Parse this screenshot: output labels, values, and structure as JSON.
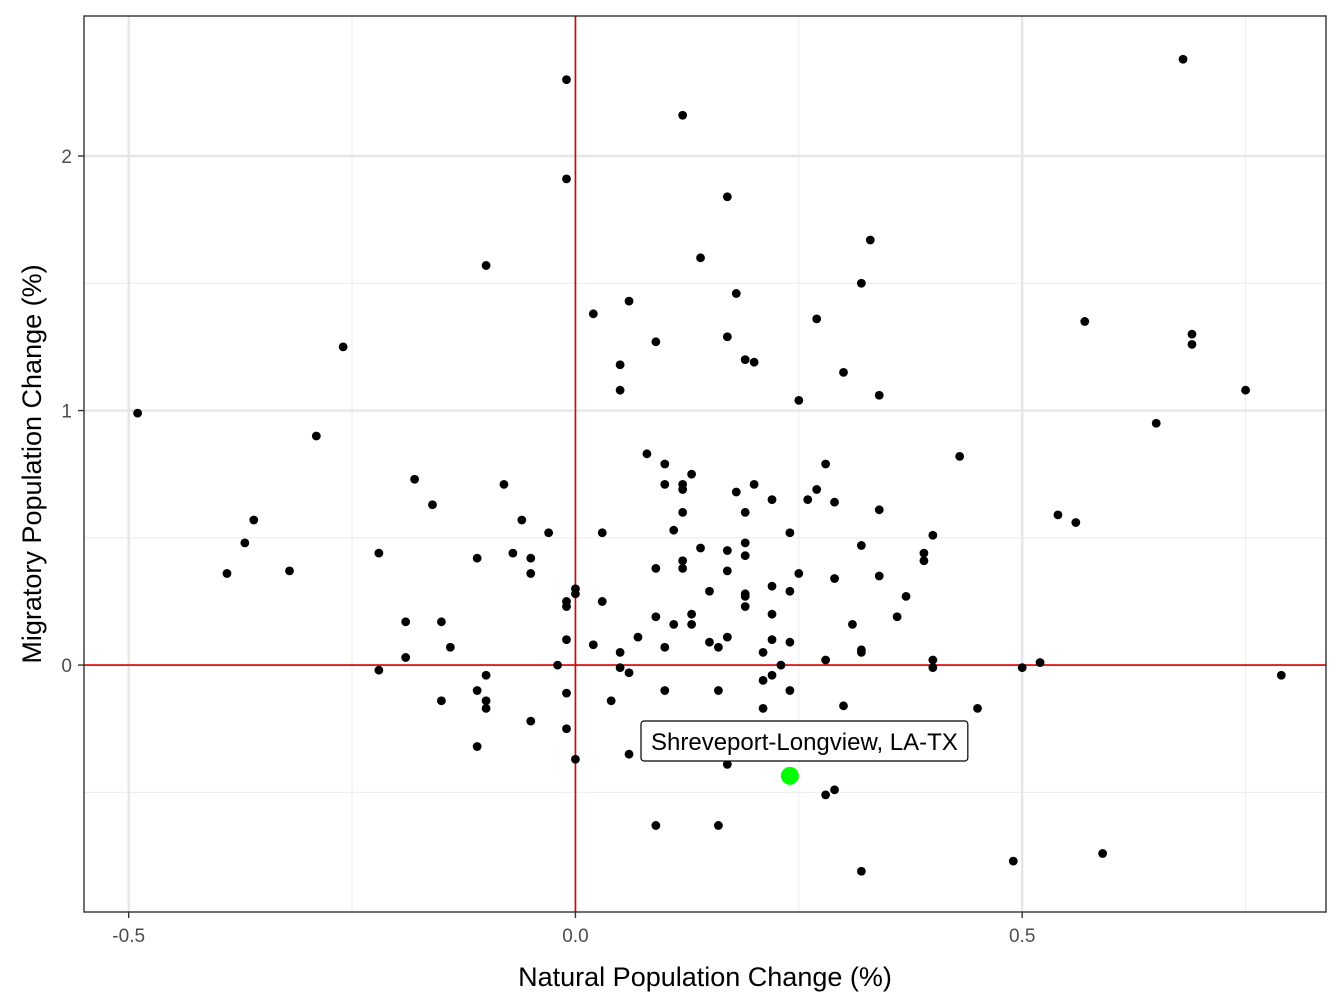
{
  "chart_data": {
    "type": "scatter",
    "title": "",
    "xlabel": "Natural Population Change (%)",
    "ylabel": "Migratory Population Change (%)",
    "xlim": [
      -0.55,
      0.84
    ],
    "ylim": [
      -0.97,
      2.55
    ],
    "x_ticks": [
      -0.5,
      0.0,
      0.5
    ],
    "x_tick_labels": [
      "-0.5",
      "0.0",
      "0.5"
    ],
    "y_ticks": [
      0,
      1,
      2
    ],
    "y_tick_labels": [
      "0",
      "1",
      "2"
    ],
    "x_minor": [
      -0.25,
      0.25,
      0.75
    ],
    "y_minor": [
      -0.5,
      0.5,
      1.5
    ],
    "grid": true,
    "legend": "none",
    "reference_lines": {
      "x": 0,
      "y": 0,
      "color": "#e00000"
    },
    "point_color": "#000000",
    "highlight_color": "#00ff00",
    "points": [
      {
        "x": -0.49,
        "y": 0.99
      },
      {
        "x": -0.39,
        "y": 0.36
      },
      {
        "x": -0.37,
        "y": 0.48
      },
      {
        "x": -0.36,
        "y": 0.57
      },
      {
        "x": -0.32,
        "y": 0.37
      },
      {
        "x": -0.29,
        "y": 0.9
      },
      {
        "x": -0.26,
        "y": 1.25
      },
      {
        "x": -0.22,
        "y": 0.44
      },
      {
        "x": -0.22,
        "y": -0.02
      },
      {
        "x": -0.19,
        "y": 0.17
      },
      {
        "x": -0.19,
        "y": 0.03
      },
      {
        "x": -0.18,
        "y": 0.73
      },
      {
        "x": -0.16,
        "y": 0.63
      },
      {
        "x": -0.15,
        "y": 0.17
      },
      {
        "x": -0.15,
        "y": -0.14
      },
      {
        "x": -0.14,
        "y": 0.07
      },
      {
        "x": -0.11,
        "y": 0.42
      },
      {
        "x": -0.11,
        "y": -0.1
      },
      {
        "x": -0.11,
        "y": -0.32
      },
      {
        "x": -0.1,
        "y": -0.04
      },
      {
        "x": -0.1,
        "y": -0.14
      },
      {
        "x": -0.1,
        "y": -0.17
      },
      {
        "x": -0.1,
        "y": 1.57
      },
      {
        "x": -0.08,
        "y": 0.71
      },
      {
        "x": -0.07,
        "y": 0.44
      },
      {
        "x": -0.06,
        "y": 0.57
      },
      {
        "x": -0.05,
        "y": 0.42
      },
      {
        "x": -0.05,
        "y": 0.36
      },
      {
        "x": -0.05,
        "y": -0.22
      },
      {
        "x": -0.03,
        "y": 0.52
      },
      {
        "x": -0.02,
        "y": 0.0
      },
      {
        "x": -0.01,
        "y": 2.3
      },
      {
        "x": -0.01,
        "y": 1.91
      },
      {
        "x": -0.01,
        "y": 0.25
      },
      {
        "x": -0.01,
        "y": 0.23
      },
      {
        "x": -0.01,
        "y": 0.1
      },
      {
        "x": -0.01,
        "y": -0.11
      },
      {
        "x": -0.01,
        "y": -0.25
      },
      {
        "x": 0.0,
        "y": 0.3
      },
      {
        "x": 0.0,
        "y": 0.28
      },
      {
        "x": 0.0,
        "y": -0.37
      },
      {
        "x": 0.02,
        "y": 1.38
      },
      {
        "x": 0.02,
        "y": 0.08
      },
      {
        "x": 0.03,
        "y": 0.52
      },
      {
        "x": 0.03,
        "y": 0.25
      },
      {
        "x": 0.04,
        "y": -0.14
      },
      {
        "x": 0.05,
        "y": 1.18
      },
      {
        "x": 0.05,
        "y": 1.08
      },
      {
        "x": 0.05,
        "y": 0.05
      },
      {
        "x": 0.05,
        "y": -0.01
      },
      {
        "x": 0.06,
        "y": 1.43
      },
      {
        "x": 0.06,
        "y": -0.03
      },
      {
        "x": 0.06,
        "y": -0.35
      },
      {
        "x": 0.07,
        "y": 0.11
      },
      {
        "x": 0.08,
        "y": 0.83
      },
      {
        "x": 0.08,
        "y": -0.3
      },
      {
        "x": 0.09,
        "y": 1.27
      },
      {
        "x": 0.09,
        "y": 0.38
      },
      {
        "x": 0.09,
        "y": 0.19
      },
      {
        "x": 0.09,
        "y": -0.63
      },
      {
        "x": 0.1,
        "y": 0.79
      },
      {
        "x": 0.1,
        "y": 0.71
      },
      {
        "x": 0.1,
        "y": 0.07
      },
      {
        "x": 0.1,
        "y": -0.1
      },
      {
        "x": 0.11,
        "y": 0.53
      },
      {
        "x": 0.11,
        "y": 0.16
      },
      {
        "x": 0.12,
        "y": 2.16
      },
      {
        "x": 0.12,
        "y": 0.71
      },
      {
        "x": 0.12,
        "y": 0.69
      },
      {
        "x": 0.12,
        "y": 0.6
      },
      {
        "x": 0.12,
        "y": 0.41
      },
      {
        "x": 0.12,
        "y": 0.38
      },
      {
        "x": 0.13,
        "y": 0.75
      },
      {
        "x": 0.13,
        "y": 0.2
      },
      {
        "x": 0.13,
        "y": 0.16
      },
      {
        "x": 0.14,
        "y": 1.6
      },
      {
        "x": 0.14,
        "y": 0.46
      },
      {
        "x": 0.15,
        "y": 0.29
      },
      {
        "x": 0.15,
        "y": 0.09
      },
      {
        "x": 0.16,
        "y": 0.07
      },
      {
        "x": 0.16,
        "y": -0.1
      },
      {
        "x": 0.16,
        "y": -0.63
      },
      {
        "x": 0.17,
        "y": 1.84
      },
      {
        "x": 0.17,
        "y": 1.29
      },
      {
        "x": 0.17,
        "y": 0.45
      },
      {
        "x": 0.17,
        "y": 0.37
      },
      {
        "x": 0.17,
        "y": 0.11
      },
      {
        "x": 0.17,
        "y": -0.39
      },
      {
        "x": 0.18,
        "y": 1.46
      },
      {
        "x": 0.18,
        "y": 0.68
      },
      {
        "x": 0.19,
        "y": 1.2
      },
      {
        "x": 0.19,
        "y": 0.6
      },
      {
        "x": 0.19,
        "y": 0.48
      },
      {
        "x": 0.19,
        "y": 0.43
      },
      {
        "x": 0.19,
        "y": 0.28
      },
      {
        "x": 0.19,
        "y": 0.27
      },
      {
        "x": 0.19,
        "y": 0.23
      },
      {
        "x": 0.2,
        "y": 1.19
      },
      {
        "x": 0.2,
        "y": 0.71
      },
      {
        "x": 0.21,
        "y": 0.05
      },
      {
        "x": 0.21,
        "y": -0.06
      },
      {
        "x": 0.21,
        "y": -0.17
      },
      {
        "x": 0.22,
        "y": 0.65
      },
      {
        "x": 0.22,
        "y": 0.31
      },
      {
        "x": 0.22,
        "y": 0.2
      },
      {
        "x": 0.22,
        "y": 0.1
      },
      {
        "x": 0.22,
        "y": -0.04
      },
      {
        "x": 0.23,
        "y": 0.0
      },
      {
        "x": 0.24,
        "y": 0.52
      },
      {
        "x": 0.24,
        "y": 0.29
      },
      {
        "x": 0.24,
        "y": 0.09
      },
      {
        "x": 0.24,
        "y": -0.1
      },
      {
        "x": 0.25,
        "y": 1.04
      },
      {
        "x": 0.25,
        "y": 0.36
      },
      {
        "x": 0.26,
        "y": 0.65
      },
      {
        "x": 0.27,
        "y": 1.36
      },
      {
        "x": 0.27,
        "y": 0.69
      },
      {
        "x": 0.28,
        "y": 0.79
      },
      {
        "x": 0.28,
        "y": 0.02
      },
      {
        "x": 0.28,
        "y": -0.51
      },
      {
        "x": 0.29,
        "y": 0.64
      },
      {
        "x": 0.29,
        "y": 0.34
      },
      {
        "x": 0.29,
        "y": -0.49
      },
      {
        "x": 0.3,
        "y": 1.15
      },
      {
        "x": 0.3,
        "y": -0.16
      },
      {
        "x": 0.31,
        "y": 0.16
      },
      {
        "x": 0.32,
        "y": 1.5
      },
      {
        "x": 0.32,
        "y": 0.47
      },
      {
        "x": 0.32,
        "y": 0.06
      },
      {
        "x": 0.32,
        "y": 0.05
      },
      {
        "x": 0.32,
        "y": -0.81
      },
      {
        "x": 0.33,
        "y": 1.67
      },
      {
        "x": 0.34,
        "y": 1.06
      },
      {
        "x": 0.34,
        "y": 0.61
      },
      {
        "x": 0.34,
        "y": 0.35
      },
      {
        "x": 0.36,
        "y": 0.19
      },
      {
        "x": 0.37,
        "y": 0.27
      },
      {
        "x": 0.39,
        "y": 0.44
      },
      {
        "x": 0.39,
        "y": 0.41
      },
      {
        "x": 0.4,
        "y": 0.51
      },
      {
        "x": 0.4,
        "y": 0.02
      },
      {
        "x": 0.4,
        "y": -0.01
      },
      {
        "x": 0.42,
        "y": -0.36
      },
      {
        "x": 0.43,
        "y": 0.82
      },
      {
        "x": 0.45,
        "y": -0.17
      },
      {
        "x": 0.49,
        "y": -0.77
      },
      {
        "x": 0.5,
        "y": -0.01
      },
      {
        "x": 0.52,
        "y": 0.01
      },
      {
        "x": 0.54,
        "y": 0.59
      },
      {
        "x": 0.56,
        "y": 0.56
      },
      {
        "x": 0.57,
        "y": 1.35
      },
      {
        "x": 0.59,
        "y": -0.74
      },
      {
        "x": 0.65,
        "y": 0.95
      },
      {
        "x": 0.68,
        "y": 2.38
      },
      {
        "x": 0.69,
        "y": 1.3
      },
      {
        "x": 0.69,
        "y": 1.26
      },
      {
        "x": 0.75,
        "y": 1.08
      },
      {
        "x": 0.79,
        "y": -0.04
      }
    ],
    "highlight": {
      "label": "Shreveport-Longview, LA-TX",
      "x": 0.24,
      "y": -0.435
    }
  }
}
